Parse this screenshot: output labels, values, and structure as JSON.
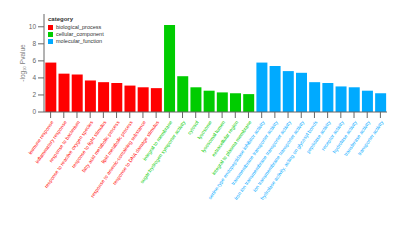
{
  "chart_data": {
    "type": "bar",
    "ylabel": "-log₁₀ Pvalue",
    "categories": [
      "immune response",
      "inflammatory response",
      "response to bacterium",
      "response to reactive oxygen species",
      "response to light stimulus",
      "fatty acid metabolic process",
      "lipid metabolic process",
      "response to arsenic-containing substance",
      "response to DNA damage stimulus",
      "integral to membrane",
      "sugar:hydrogen symporter activity",
      "cytosol",
      "lysosome",
      "lysosomal lumen",
      "extracellular region",
      "integral to plasma membrane",
      "serine-type endopeptidase inhibitor activity",
      "transmembrane transporter activity",
      "iron ion transmembrane transporter activity",
      "ion transmembrane transporter activity",
      "hydrolase activity, acting on glycosyl bonds",
      "peptidase activity",
      "receptor activity",
      "hydrolase activity",
      "transferase activity",
      "transporter activity"
    ],
    "values": [
      5.8,
      4.5,
      4.4,
      3.7,
      3.5,
      3.4,
      3.1,
      2.9,
      2.8,
      10.2,
      4.2,
      2.9,
      2.5,
      2.3,
      2.2,
      2.1,
      5.8,
      5.4,
      4.8,
      4.6,
      3.5,
      3.4,
      3.0,
      2.9,
      2.5,
      2.2
    ],
    "colors": [
      "#ff0000",
      "#ff0000",
      "#ff0000",
      "#ff0000",
      "#ff0000",
      "#ff0000",
      "#ff0000",
      "#ff0000",
      "#ff0000",
      "#00cc00",
      "#00cc00",
      "#00cc00",
      "#00cc00",
      "#00cc00",
      "#00cc00",
      "#00cc00",
      "#00aaff",
      "#00aaff",
      "#00aaff",
      "#00aaff",
      "#00aaff",
      "#00aaff",
      "#00aaff",
      "#00aaff",
      "#00aaff",
      "#00aaff"
    ],
    "legend": "upper left",
    "legend_title": "category",
    "legend_entries": [
      {
        "name": "biological_process",
        "color": "#ff0000"
      },
      {
        "name": "cellular_component",
        "color": "#00cc00"
      },
      {
        "name": "molecular_function",
        "color": "#00aaff"
      }
    ],
    "ylim": [
      0,
      11.5
    ],
    "yticks": [
      0,
      2,
      4,
      6,
      8,
      10
    ],
    "grid": false
  }
}
